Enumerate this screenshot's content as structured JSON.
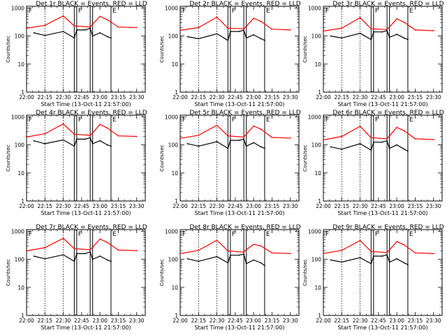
{
  "figure": {
    "xlabel": "Start Time (13-Oct-11 21:57:00)",
    "ylabel": "Counts/sec",
    "series_colors": {
      "events": "#000000",
      "lld": "#ff0000"
    }
  },
  "chart_data": [
    {
      "type": "line",
      "title": "Det 1r BLACK = Events, RED = LLD",
      "xlabel": "Start Time (13-Oct-11 21:57:00)",
      "ylabel": "Counts/sec",
      "x_ticks": [
        "22:00",
        "22:15",
        "22:30",
        "22:45",
        "23:00",
        "23:15",
        "23:30"
      ],
      "y_ticks": [
        "1",
        "10",
        "100",
        "1000"
      ],
      "y_scale": "log",
      "ylim": [
        1,
        1000
      ],
      "flags": [
        "F",
        "F",
        "E"
      ],
      "series": [
        {
          "color": "#000000",
          "x": [
            "22:06",
            "22:15",
            "22:30",
            "22:39",
            "22:41",
            "22:48",
            "22:52",
            "22:54",
            "23:00",
            "23:06",
            "23:09"
          ],
          "values": [
            130,
            105,
            145,
            85,
            165,
            165,
            190,
            100,
            130,
            95,
            85
          ]
        },
        {
          "color": "#ff0000",
          "x": [
            "22:00",
            "22:15",
            "22:30",
            "22:39",
            "22:52",
            "22:54",
            "23:00",
            "23:06",
            "23:15",
            "23:30"
          ],
          "values": [
            190,
            240,
            520,
            230,
            210,
            260,
            500,
            380,
            210,
            200
          ]
        }
      ]
    },
    {
      "type": "line",
      "title": "Det 2r BLACK = Events, RED = LLD",
      "xlabel": "Start Time (13-Oct-11 21:57:00)",
      "ylabel": "Counts/sec",
      "x_ticks": [
        "22:00",
        "22:15",
        "22:30",
        "22:45",
        "23:00",
        "23:15",
        "23:30"
      ],
      "y_ticks": [
        "1",
        "10",
        "100",
        "1000"
      ],
      "y_scale": "log",
      "ylim": [
        1,
        1000
      ],
      "flags": [
        "F",
        "F",
        "E"
      ],
      "series": [
        {
          "color": "#000000",
          "x": [
            "22:06",
            "22:15",
            "22:30",
            "22:39",
            "22:41",
            "22:48",
            "22:52",
            "22:54",
            "23:00",
            "23:06",
            "23:09"
          ],
          "values": [
            95,
            80,
            120,
            70,
            145,
            145,
            160,
            85,
            110,
            80,
            70
          ]
        },
        {
          "color": "#ff0000",
          "x": [
            "22:00",
            "22:15",
            "22:30",
            "22:39",
            "22:52",
            "22:54",
            "23:00",
            "23:06",
            "23:15",
            "23:30"
          ],
          "values": [
            160,
            200,
            470,
            190,
            180,
            220,
            430,
            330,
            175,
            165
          ]
        }
      ]
    },
    {
      "type": "line",
      "title": "Det 3r BLACK = Events, RED = LLD",
      "xlabel": "Start Time (13-Oct-11 21:57:00)",
      "ylabel": "Counts/sec",
      "x_ticks": [
        "22:00",
        "22:15",
        "22:30",
        "22:45",
        "23:00",
        "23:15",
        "23:30"
      ],
      "y_ticks": [
        "1",
        "10",
        "100",
        "1000"
      ],
      "y_scale": "log",
      "ylim": [
        1,
        1000
      ],
      "flags": [
        "F",
        "F",
        "E"
      ],
      "series": [
        {
          "color": "#000000",
          "x": [
            "22:06",
            "22:15",
            "22:30",
            "22:39",
            "22:41",
            "22:48",
            "22:52",
            "22:54",
            "23:00",
            "23:06",
            "23:09"
          ],
          "values": [
            100,
            85,
            125,
            75,
            140,
            140,
            155,
            90,
            115,
            85,
            75
          ]
        },
        {
          "color": "#ff0000",
          "x": [
            "22:00",
            "22:15",
            "22:30",
            "22:39",
            "22:52",
            "22:54",
            "23:00",
            "23:06",
            "23:15",
            "23:30"
          ],
          "values": [
            150,
            190,
            450,
            180,
            170,
            210,
            410,
            310,
            165,
            155
          ]
        }
      ]
    },
    {
      "type": "line",
      "title": "Det 4r BLACK = Events, RED = LLD",
      "xlabel": "Start Time (13-Oct-11 21:57:00)",
      "ylabel": "Counts/sec",
      "x_ticks": [
        "22:00",
        "22:15",
        "22:30",
        "22:45",
        "23:00",
        "23:15",
        "23:30"
      ],
      "y_ticks": [
        "1",
        "10",
        "100",
        "1000"
      ],
      "y_scale": "log",
      "ylim": [
        1,
        1000
      ],
      "flags": [
        "F",
        "F",
        "E"
      ],
      "series": [
        {
          "color": "#000000",
          "x": [
            "22:06",
            "22:15",
            "22:30",
            "22:39",
            "22:41",
            "22:48",
            "22:52",
            "22:54",
            "23:00",
            "23:06",
            "23:09"
          ],
          "values": [
            140,
            110,
            150,
            90,
            160,
            160,
            180,
            110,
            140,
            100,
            90
          ]
        },
        {
          "color": "#ff0000",
          "x": [
            "22:00",
            "22:15",
            "22:30",
            "22:39",
            "22:52",
            "22:54",
            "23:00",
            "23:06",
            "23:15",
            "23:30"
          ],
          "values": [
            190,
            250,
            560,
            240,
            220,
            270,
            540,
            400,
            210,
            200
          ]
        }
      ]
    },
    {
      "type": "line",
      "title": "Det 5r BLACK = Events, RED = LLD",
      "xlabel": "Start Time (13-Oct-11 21:57:00)",
      "ylabel": "Counts/sec",
      "x_ticks": [
        "22:00",
        "22:15",
        "22:30",
        "22:45",
        "23:00",
        "23:15",
        "23:30"
      ],
      "y_ticks": [
        "1",
        "10",
        "100",
        "1000"
      ],
      "y_scale": "log",
      "ylim": [
        1,
        1000
      ],
      "flags": [
        "F",
        "F",
        "E"
      ],
      "series": [
        {
          "color": "#000000",
          "x": [
            "22:06",
            "22:15",
            "22:30",
            "22:39",
            "22:41",
            "22:48",
            "22:52",
            "22:54",
            "23:00",
            "23:06",
            "23:09"
          ],
          "values": [
            110,
            90,
            130,
            75,
            145,
            145,
            160,
            90,
            120,
            85,
            75
          ]
        },
        {
          "color": "#ff0000",
          "x": [
            "22:00",
            "22:15",
            "22:30",
            "22:39",
            "22:52",
            "22:54",
            "23:00",
            "23:06",
            "23:15",
            "23:30"
          ],
          "values": [
            170,
            220,
            500,
            210,
            190,
            240,
            470,
            360,
            185,
            175
          ]
        }
      ]
    },
    {
      "type": "line",
      "title": "Det 6r BLACK = Events, RED = LLD",
      "xlabel": "Start Time (13-Oct-11 21:57:00)",
      "ylabel": "Counts/sec",
      "x_ticks": [
        "22:00",
        "22:15",
        "22:30",
        "22:45",
        "23:00",
        "23:15",
        "23:30"
      ],
      "y_ticks": [
        "1",
        "10",
        "100",
        "1000"
      ],
      "y_scale": "log",
      "ylim": [
        1,
        1000
      ],
      "flags": [
        "F",
        "F",
        "E"
      ],
      "series": [
        {
          "color": "#000000",
          "x": [
            "22:06",
            "22:15",
            "22:30",
            "22:39",
            "22:41",
            "22:48",
            "22:52",
            "22:54",
            "23:00",
            "23:06",
            "23:09"
          ],
          "values": [
            85,
            70,
            110,
            65,
            125,
            125,
            140,
            75,
            100,
            70,
            60
          ]
        },
        {
          "color": "#ff0000",
          "x": [
            "22:00",
            "22:15",
            "22:30",
            "22:39",
            "22:52",
            "22:54",
            "23:00",
            "23:06",
            "23:15",
            "23:30"
          ],
          "values": [
            150,
            200,
            460,
            180,
            165,
            210,
            420,
            320,
            165,
            155
          ]
        }
      ]
    },
    {
      "type": "line",
      "title": "Det 7r BLACK = Events, RED = LLD",
      "xlabel": "Start Time (13-Oct-11 21:57:00)",
      "ylabel": "Counts/sec",
      "x_ticks": [
        "22:00",
        "22:15",
        "22:30",
        "22:45",
        "23:00",
        "23:15",
        "23:30"
      ],
      "y_ticks": [
        "1",
        "10",
        "100",
        "1000"
      ],
      "y_scale": "log",
      "ylim": [
        1,
        1000
      ],
      "flags": [
        "F",
        "F",
        "E"
      ],
      "series": [
        {
          "color": "#000000",
          "x": [
            "22:06",
            "22:15",
            "22:30",
            "22:39",
            "22:41",
            "22:48",
            "22:52",
            "22:54",
            "23:00",
            "23:06",
            "23:09"
          ],
          "values": [
            130,
            105,
            145,
            85,
            160,
            160,
            185,
            100,
            130,
            95,
            85
          ]
        },
        {
          "color": "#ff0000",
          "x": [
            "22:00",
            "22:15",
            "22:30",
            "22:39",
            "22:52",
            "22:54",
            "23:00",
            "23:06",
            "23:15",
            "23:30"
          ],
          "values": [
            200,
            260,
            560,
            240,
            220,
            270,
            530,
            400,
            215,
            205
          ]
        }
      ]
    },
    {
      "type": "line",
      "title": "Det 8r BLACK = Events, RED = LLD",
      "xlabel": "Start Time (13-Oct-11 21:57:00)",
      "ylabel": "Counts/sec",
      "x_ticks": [
        "22:00",
        "22:15",
        "22:30",
        "22:45",
        "23:00",
        "23:15",
        "23:30"
      ],
      "y_ticks": [
        "1",
        "10",
        "100",
        "1000"
      ],
      "y_scale": "log",
      "ylim": [
        1,
        1000
      ],
      "flags": [
        "F",
        "F",
        "E"
      ],
      "series": [
        {
          "color": "#000000",
          "x": [
            "22:06",
            "22:15",
            "22:30",
            "22:39",
            "22:41",
            "22:48",
            "22:52",
            "22:54",
            "23:00",
            "23:06",
            "23:09"
          ],
          "values": [
            105,
            85,
            125,
            75,
            140,
            140,
            155,
            70,
            95,
            75,
            60
          ]
        },
        {
          "color": "#ff0000",
          "x": [
            "22:00",
            "22:15",
            "22:30",
            "22:39",
            "22:52",
            "22:54",
            "23:00",
            "23:06",
            "23:15",
            "23:30"
          ],
          "values": [
            160,
            210,
            480,
            200,
            180,
            220,
            340,
            300,
            170,
            160
          ]
        }
      ]
    },
    {
      "type": "line",
      "title": "Det 9r BLACK = Events, RED = LLD",
      "xlabel": "Start Time (13-Oct-11 21:57:00)",
      "ylabel": "Counts/sec",
      "x_ticks": [
        "22:00",
        "22:15",
        "22:30",
        "22:45",
        "23:00",
        "23:15",
        "23:30"
      ],
      "y_ticks": [
        "1",
        "10",
        "100",
        "1000"
      ],
      "y_scale": "log",
      "ylim": [
        1,
        1000
      ],
      "flags": [
        "F",
        "F",
        "E"
      ],
      "series": [
        {
          "color": "#000000",
          "x": [
            "22:06",
            "22:15",
            "22:30",
            "22:39",
            "22:41",
            "22:48",
            "22:52",
            "22:54",
            "23:00",
            "23:06",
            "23:09"
          ],
          "values": [
            95,
            80,
            115,
            70,
            130,
            130,
            145,
            80,
            105,
            75,
            65
          ]
        },
        {
          "color": "#ff0000",
          "x": [
            "22:00",
            "22:15",
            "22:30",
            "22:39",
            "22:52",
            "22:54",
            "23:00",
            "23:06",
            "23:15",
            "23:30"
          ],
          "values": [
            160,
            210,
            470,
            190,
            175,
            215,
            430,
            330,
            170,
            160
          ]
        }
      ]
    }
  ]
}
